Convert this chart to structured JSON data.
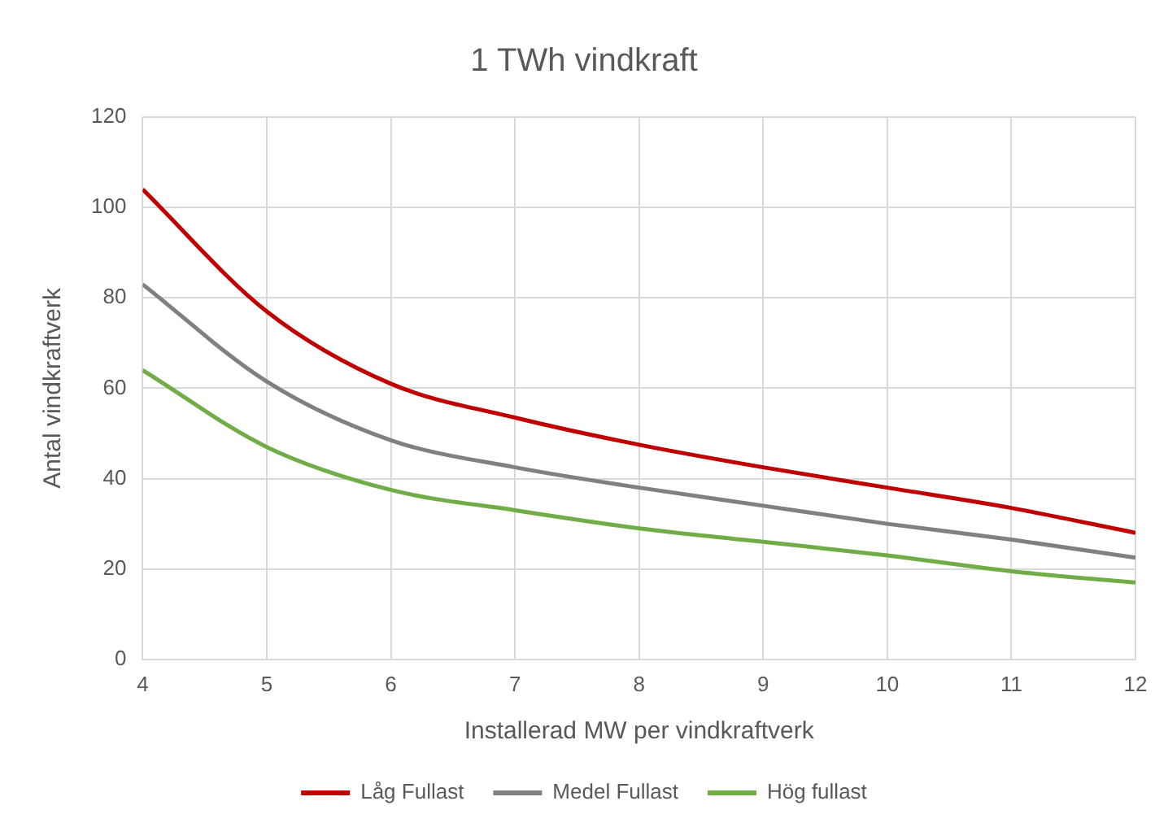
{
  "chart_data": {
    "type": "line",
    "title": "1 TWh vindkraft",
    "xlabel": "Installerad MW per vindkraftverk",
    "ylabel": "Antal vindkraftverk",
    "x": [
      4,
      5,
      6,
      7,
      8,
      9,
      10,
      11,
      12
    ],
    "series": [
      {
        "name": "Låg Fullast",
        "color": "#c00000",
        "values": [
          104,
          77,
          61,
          53.5,
          47.5,
          42.5,
          38,
          33.5,
          28
        ]
      },
      {
        "name": "Medel Fullast",
        "color": "#808080",
        "values": [
          83,
          61.5,
          48.5,
          42.5,
          38,
          34,
          30,
          26.5,
          22.5
        ]
      },
      {
        "name": "Hög fullast",
        "color": "#70ad47",
        "values": [
          64,
          47,
          37.5,
          33,
          29,
          26,
          23,
          19.5,
          17
        ]
      }
    ],
    "xlim": [
      4,
      12
    ],
    "xticks": [
      4,
      5,
      6,
      7,
      8,
      9,
      10,
      11,
      12
    ],
    "ylim": [
      0,
      120
    ],
    "yticks": [
      0,
      20,
      40,
      60,
      80,
      100,
      120
    ],
    "grid": true,
    "legend": "bottom",
    "marker": "none",
    "line_style": "solid"
  }
}
